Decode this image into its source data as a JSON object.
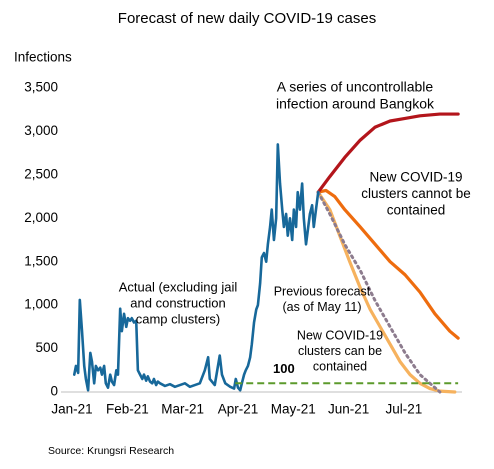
{
  "chart_data": {
    "type": "line",
    "title": "Forecast of new daily COVID-19 cases",
    "ylabel": "Infections",
    "source": "Source: Krungsri Research",
    "xlim": [
      -0.2,
      7.05
    ],
    "xticks": [
      {
        "value": 0,
        "label": "Jan-21"
      },
      {
        "value": 1,
        "label": "Feb-21"
      },
      {
        "value": 2,
        "label": "Mar-21"
      },
      {
        "value": 3,
        "label": "Apr-21"
      },
      {
        "value": 4,
        "label": "May-21"
      },
      {
        "value": 5,
        "label": "Jun-21"
      },
      {
        "value": 6,
        "label": "Jul-21"
      }
    ],
    "ylim": [
      0,
      3500
    ],
    "yticks": [
      0,
      500,
      {
        "value": 1000,
        "label": "1,000"
      },
      {
        "value": 1500,
        "label": "1,500"
      },
      {
        "value": 2000,
        "label": "2,000"
      },
      {
        "value": 2500,
        "label": "2,500"
      },
      {
        "value": 3000,
        "label": "3,000"
      },
      {
        "value": 3500,
        "label": "3,500"
      }
    ],
    "grid": false,
    "series": [
      {
        "label_lines": [
          "New COVID-19",
          "clusters can be",
          "contained"
        ],
        "color": "#f6b25e",
        "dash": "solid",
        "x": [
          4.45,
          4.66,
          4.84,
          5.02,
          5.21,
          5.39,
          5.57,
          5.75,
          5.93,
          6.11,
          6.29,
          6.47,
          6.65,
          6.92
        ],
        "values": [
          2300,
          2100,
          1800,
          1500,
          1200,
          950,
          750,
          550,
          350,
          200,
          100,
          40,
          10,
          0
        ]
      },
      {
        "label_lines": [
          "New COVID-19",
          "clusters cannot be",
          "contained"
        ],
        "color": "#ee6c0e",
        "dash": "solid",
        "x": [
          4.45,
          4.59,
          4.75,
          4.93,
          5.21,
          5.48,
          5.75,
          6.02,
          6.29,
          6.56,
          6.83,
          6.98
        ],
        "values": [
          2300,
          2320,
          2250,
          2100,
          1900,
          1700,
          1500,
          1350,
          1150,
          900,
          700,
          620
        ]
      },
      {
        "label_lines": [
          "A series of uncontrollable",
          "infection around Bangkok"
        ],
        "color": "#b3151b",
        "dash": "solid",
        "x": [
          4.45,
          4.66,
          4.93,
          5.21,
          5.48,
          5.75,
          6.02,
          6.29,
          6.65,
          6.98
        ],
        "values": [
          2300,
          2480,
          2700,
          2900,
          3050,
          3120,
          3150,
          3180,
          3200,
          3200
        ]
      },
      {
        "label_lines": [
          "Previous forecast",
          "(as of May 11)"
        ],
        "color": "#8d7c8e",
        "dash": "dotted",
        "x": [
          4.45,
          4.66,
          4.93,
          5.21,
          5.48,
          5.75,
          6.02,
          6.29,
          6.56,
          6.65
        ],
        "values": [
          2300,
          2050,
          1700,
          1400,
          1050,
          750,
          450,
          200,
          50,
          0
        ]
      },
      {
        "label_lines": [
          "Actual (excluding jail",
          "and construction",
          "camp clusters)"
        ],
        "color": "#17689a",
        "dash": "solid",
        "x": [
          0.04,
          0.07,
          0.11,
          0.14,
          0.18,
          0.22,
          0.25,
          0.29,
          0.33,
          0.36,
          0.4,
          0.43,
          0.47,
          0.51,
          0.54,
          0.58,
          0.61,
          0.65,
          0.69,
          0.72,
          0.76,
          0.8,
          0.83,
          0.87,
          0.9,
          0.94,
          0.98,
          1.01,
          1.05,
          1.08,
          1.12,
          1.16,
          1.19,
          1.23,
          1.27,
          1.3,
          1.34,
          1.37,
          1.41,
          1.45,
          1.48,
          1.52,
          1.55,
          1.59,
          1.68,
          1.77,
          1.86,
          1.95,
          2.04,
          2.13,
          2.22,
          2.31,
          2.4,
          2.46,
          2.49,
          2.58,
          2.67,
          2.71,
          2.77,
          2.86,
          2.93,
          2.96,
          3.0,
          3.04,
          3.07,
          3.11,
          3.14,
          3.18,
          3.22,
          3.25,
          3.29,
          3.33,
          3.36,
          3.4,
          3.43,
          3.47,
          3.51,
          3.54,
          3.58,
          3.61,
          3.65,
          3.69,
          3.72,
          3.76,
          3.8,
          3.83,
          3.87,
          3.9,
          3.94,
          3.98,
          4.01,
          4.05,
          4.08,
          4.12,
          4.16,
          4.19,
          4.23,
          4.27,
          4.3,
          4.34,
          4.37,
          4.41,
          4.45
        ],
        "values": [
          200,
          300,
          220,
          1060,
          700,
          300,
          150,
          20,
          450,
          350,
          100,
          300,
          250,
          280,
          200,
          300,
          100,
          50,
          200,
          120,
          80,
          250,
          200,
          960,
          700,
          900,
          750,
          850,
          820,
          850,
          800,
          820,
          250,
          200,
          150,
          200,
          130,
          180,
          120,
          100,
          150,
          80,
          120,
          100,
          70,
          90,
          60,
          80,
          100,
          60,
          80,
          100,
          250,
          400,
          150,
          80,
          420,
          200,
          100,
          60,
          40,
          150,
          50,
          20,
          100,
          200,
          250,
          300,
          400,
          550,
          800,
          950,
          1000,
          1250,
          1550,
          1600,
          1500,
          1700,
          1900,
          2100,
          1750,
          2000,
          2850,
          2400,
          2100,
          1900,
          2050,
          1800,
          2000,
          1750,
          2100,
          1900,
          2300,
          2100,
          2400,
          2000,
          1700,
          1900,
          2050,
          2150,
          1900,
          2100,
          2300
        ]
      },
      {
        "color": "#5c9a2c",
        "dash": "dashed",
        "x": [
          2.95,
          6.98
        ],
        "values": [
          100,
          100
        ]
      }
    ]
  }
}
